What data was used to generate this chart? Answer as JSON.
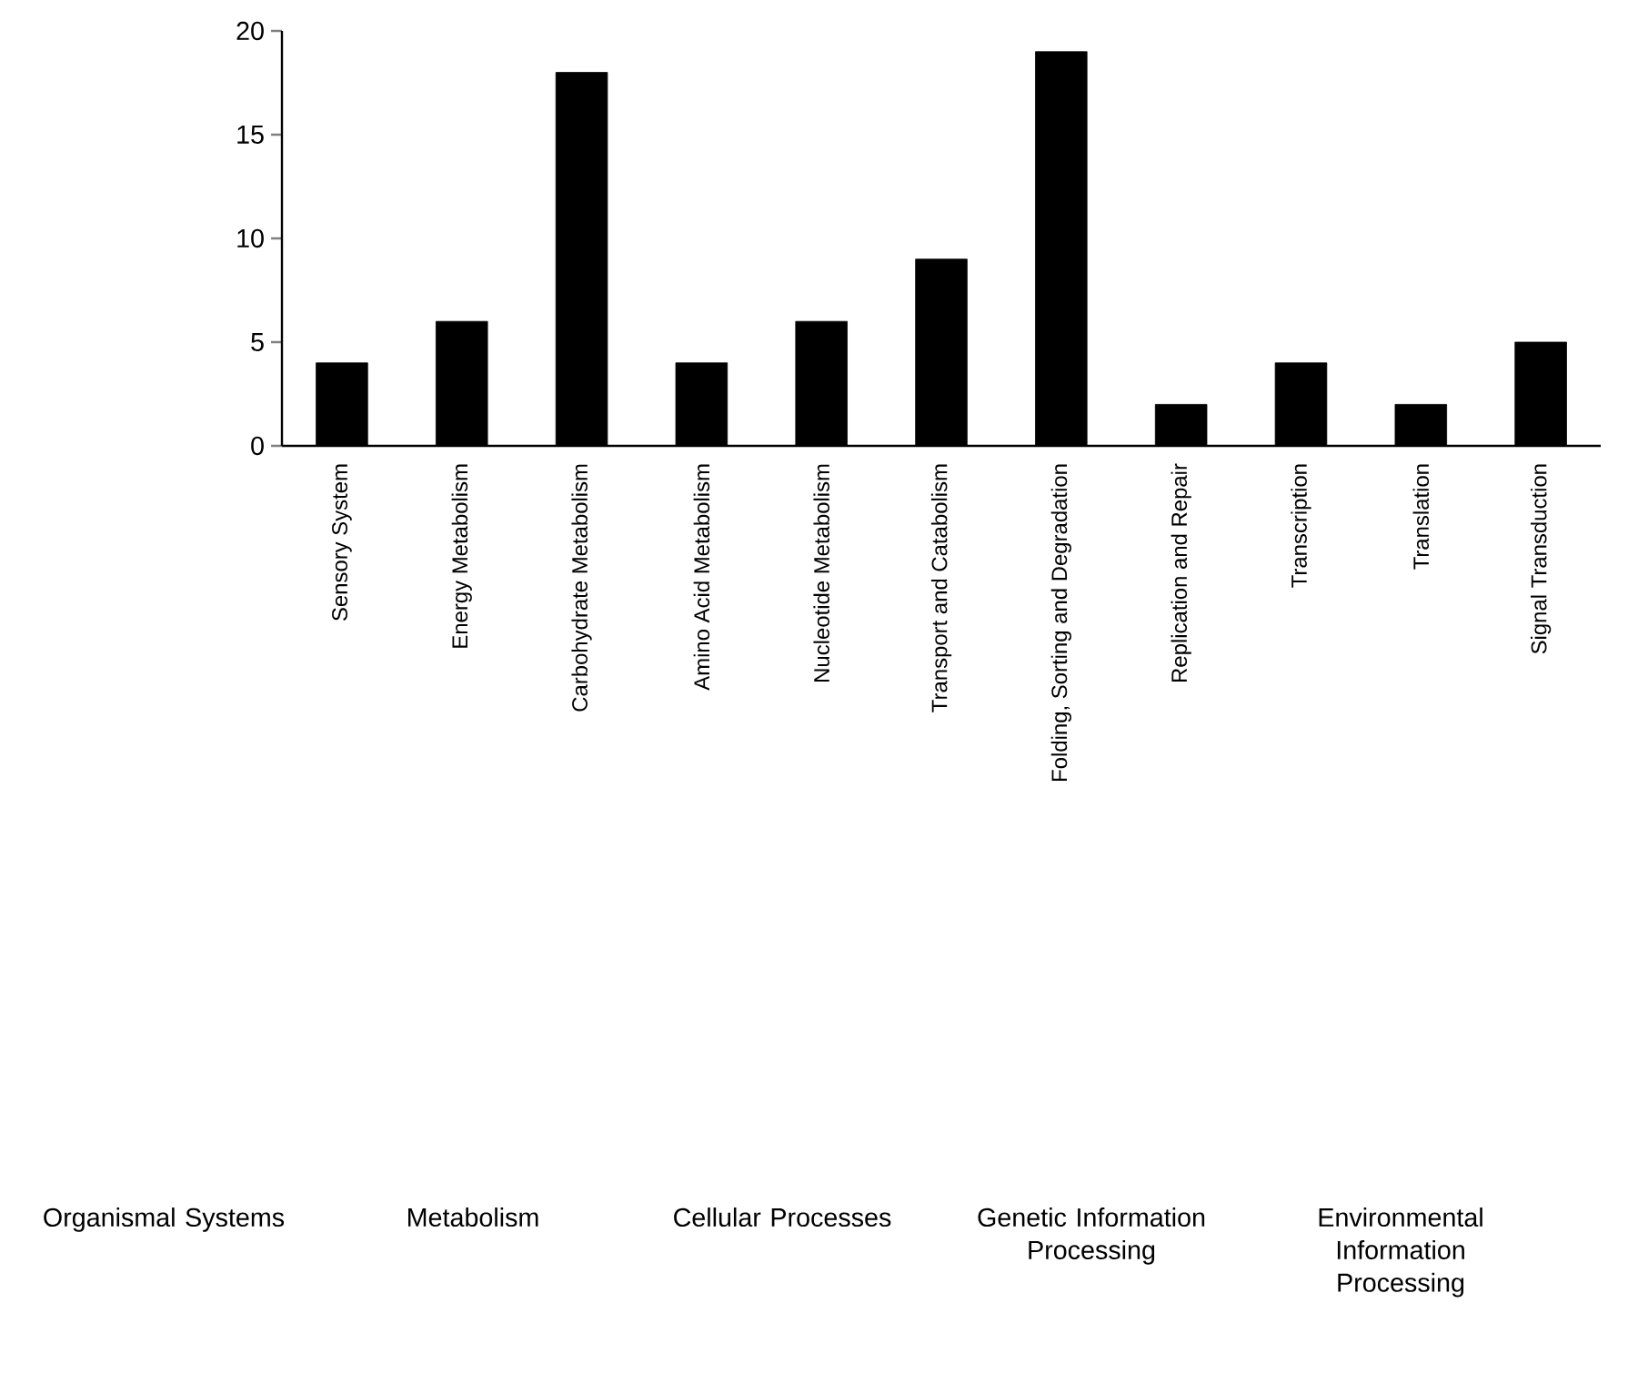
{
  "chart_data": {
    "type": "bar",
    "categories": [
      "Sensory System",
      "Energy Metabolism",
      "Carbohydrate Metabolism",
      "Amino Acid Metabolism",
      "Nucleotide Metabolism",
      "Transport and Catabolism",
      "Folding, Sorting and Degradation",
      "Replication and Repair",
      "Transcription",
      "Translation",
      "Signal Transduction"
    ],
    "values": [
      4,
      6,
      18,
      4,
      6,
      9,
      19,
      2,
      4,
      2,
      5
    ],
    "color": "#000000",
    "ylim": [
      0,
      20
    ],
    "yticks": [
      0,
      5,
      10,
      15,
      20
    ],
    "annotations": [
      "Organismal Systems",
      "Metabolism",
      "Cellular Processes",
      "Genetic Information Processing",
      "Environmental Information Processing"
    ]
  }
}
